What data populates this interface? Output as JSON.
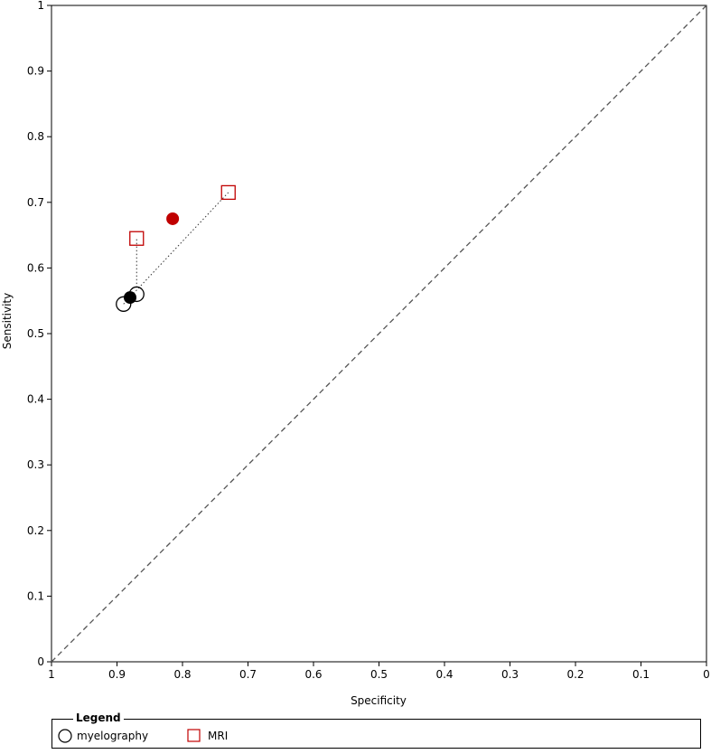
{
  "chart_data": {
    "type": "scatter",
    "xlabel": "Specificity",
    "ylabel": "Sensitivity",
    "xlim": [
      1,
      0
    ],
    "ylim": [
      0,
      1
    ],
    "x_ticks": [
      "1",
      "0.9",
      "0.8",
      "0.7",
      "0.6",
      "0.5",
      "0.4",
      "0.3",
      "0.2",
      "0.1",
      "0"
    ],
    "y_ticks": [
      "0",
      "0.1",
      "0.2",
      "0.3",
      "0.4",
      "0.5",
      "0.6",
      "0.7",
      "0.8",
      "0.9",
      "1"
    ],
    "x_tick_values": [
      1,
      0.9,
      0.8,
      0.7,
      0.6,
      0.5,
      0.4,
      0.3,
      0.2,
      0.1,
      0
    ],
    "y_tick_values": [
      0,
      0.1,
      0.2,
      0.3,
      0.4,
      0.5,
      0.6,
      0.7,
      0.8,
      0.9,
      1
    ],
    "grid": false,
    "reference_line": {
      "from": [
        1,
        0
      ],
      "to": [
        0,
        1
      ],
      "style": "dashed"
    },
    "legend_placement": "bottom",
    "series": [
      {
        "name": "myelography",
        "marker": "circle-open",
        "color": "#000000",
        "points": [
          {
            "specificity": 0.89,
            "sensitivity": 0.545
          },
          {
            "specificity": 0.87,
            "sensitivity": 0.56
          }
        ],
        "summary": {
          "specificity": 0.88,
          "sensitivity": 0.555,
          "color": "#000000"
        }
      },
      {
        "name": "MRI",
        "marker": "square-open",
        "color": "#c00000",
        "points": [
          {
            "specificity": 0.87,
            "sensitivity": 0.645
          },
          {
            "specificity": 0.73,
            "sensitivity": 0.715
          }
        ],
        "summary": {
          "specificity": 0.815,
          "sensitivity": 0.675,
          "color": "#c00000"
        }
      }
    ],
    "connectors": [
      {
        "from": {
          "specificity": 0.87,
          "sensitivity": 0.57
        },
        "to": {
          "specificity": 0.87,
          "sensitivity": 0.645
        },
        "style": "dotted"
      },
      {
        "from": {
          "specificity": 0.89,
          "sensitivity": 0.545
        },
        "to": {
          "specificity": 0.73,
          "sensitivity": 0.715
        },
        "style": "dotted"
      }
    ]
  },
  "legend": {
    "title": "Legend",
    "items": [
      {
        "label": "myelography",
        "marker": "circle-open",
        "color": "#000000"
      },
      {
        "label": "MRI",
        "marker": "square-open",
        "color": "#c00000"
      }
    ]
  }
}
